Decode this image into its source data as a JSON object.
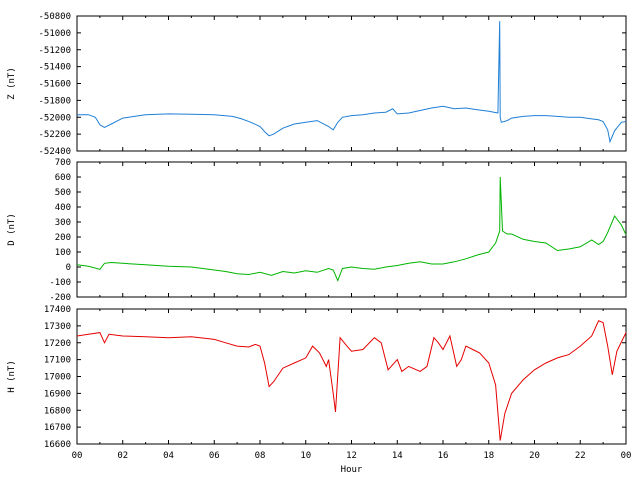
{
  "chart_data": [
    {
      "type": "line",
      "ylabel": "Z (nT)",
      "color": "#1f7fd6",
      "ylim": [
        -52400,
        -50800
      ],
      "yticks": [
        -50800,
        -51000,
        -51200,
        -51400,
        -51600,
        -51800,
        -52000,
        -52200,
        -52400
      ],
      "xlim": [
        0,
        24
      ],
      "series": [
        {
          "x": [
            0.0,
            0.5,
            0.8,
            1.0,
            1.2,
            1.5,
            2.0,
            2.5,
            3.0,
            4.0,
            5.0,
            6.0,
            6.8,
            7.2,
            7.6,
            8.0,
            8.2,
            8.4,
            8.6,
            9.0,
            9.5,
            10.0,
            10.5,
            11.0,
            11.2,
            11.4,
            11.6,
            12.0,
            12.5,
            13.0,
            13.5,
            13.8,
            14.0,
            14.5,
            15.0,
            15.5,
            16.0,
            16.5,
            17.0,
            17.5,
            18.0,
            18.4,
            18.48,
            18.5,
            18.55,
            18.8,
            19.0,
            19.5,
            20.0,
            20.5,
            21.0,
            21.5,
            22.0,
            22.5,
            22.8,
            23.0,
            23.2,
            23.3,
            23.5,
            23.8,
            24.0
          ],
          "y": [
            -51970,
            -51970,
            -52000,
            -52090,
            -52120,
            -52080,
            -52010,
            -51990,
            -51970,
            -51960,
            -51965,
            -51970,
            -51990,
            -52020,
            -52060,
            -52110,
            -52170,
            -52220,
            -52200,
            -52130,
            -52080,
            -52060,
            -52040,
            -52110,
            -52150,
            -52060,
            -52000,
            -51980,
            -51970,
            -51950,
            -51940,
            -51900,
            -51960,
            -51950,
            -51920,
            -51890,
            -51870,
            -51900,
            -51890,
            -51910,
            -51930,
            -51950,
            -50860,
            -52000,
            -52060,
            -52040,
            -52010,
            -51990,
            -51980,
            -51980,
            -51990,
            -52000,
            -52000,
            -52020,
            -52030,
            -52050,
            -52150,
            -52290,
            -52160,
            -52060,
            -52050
          ]
        }
      ]
    },
    {
      "type": "line",
      "ylabel": "D (nT)",
      "color": "#00b400",
      "ylim": [
        -200,
        700
      ],
      "yticks": [
        700,
        600,
        500,
        400,
        300,
        200,
        100,
        0,
        -100,
        -200
      ],
      "xlim": [
        0,
        24
      ],
      "series": [
        {
          "x": [
            0.0,
            0.5,
            1.0,
            1.2,
            1.5,
            2.0,
            3.0,
            4.0,
            5.0,
            6.0,
            6.5,
            7.0,
            7.5,
            8.0,
            8.5,
            9.0,
            9.5,
            10.0,
            10.5,
            11.0,
            11.2,
            11.4,
            11.6,
            12.0,
            12.5,
            13.0,
            13.5,
            14.0,
            14.5,
            15.0,
            15.5,
            16.0,
            16.5,
            17.0,
            17.5,
            18.0,
            18.3,
            18.48,
            18.5,
            18.6,
            18.8,
            19.0,
            19.5,
            20.0,
            20.5,
            21.0,
            21.5,
            22.0,
            22.5,
            22.8,
            23.0,
            23.2,
            23.5,
            23.8,
            24.0
          ],
          "y": [
            15,
            5,
            -15,
            25,
            30,
            25,
            15,
            5,
            0,
            -20,
            -30,
            -45,
            -50,
            -35,
            -55,
            -30,
            -40,
            -25,
            -35,
            -10,
            -20,
            -90,
            -10,
            0,
            -10,
            -15,
            0,
            10,
            25,
            35,
            20,
            20,
            35,
            55,
            80,
            100,
            160,
            240,
            600,
            240,
            220,
            220,
            185,
            170,
            160,
            110,
            120,
            135,
            180,
            150,
            170,
            230,
            340,
            280,
            215
          ]
        }
      ]
    },
    {
      "type": "line",
      "ylabel": "H (nT)",
      "color": "#e60000",
      "ylim": [
        16600,
        17400
      ],
      "yticks": [
        17400,
        17300,
        17200,
        17100,
        17000,
        16900,
        16800,
        16700,
        16600
      ],
      "xlim": [
        0,
        24
      ],
      "xticks": [
        "00",
        "02",
        "04",
        "06",
        "08",
        "10",
        "12",
        "14",
        "16",
        "18",
        "20",
        "22",
        "00"
      ],
      "xlabel": "Hour",
      "series": [
        {
          "x": [
            0.0,
            0.5,
            1.0,
            1.2,
            1.4,
            2.0,
            3.0,
            4.0,
            5.0,
            6.0,
            6.5,
            7.0,
            7.5,
            7.8,
            8.0,
            8.2,
            8.4,
            8.6,
            9.0,
            9.5,
            10.0,
            10.3,
            10.6,
            10.9,
            11.0,
            11.2,
            11.3,
            11.5,
            11.8,
            12.0,
            12.5,
            13.0,
            13.3,
            13.6,
            14.0,
            14.2,
            14.5,
            15.0,
            15.3,
            15.6,
            15.8,
            16.0,
            16.3,
            16.6,
            16.8,
            17.0,
            17.3,
            17.6,
            18.0,
            18.3,
            18.5,
            18.7,
            19.0,
            19.5,
            20.0,
            20.5,
            21.0,
            21.5,
            22.0,
            22.5,
            22.8,
            23.0,
            23.2,
            23.4,
            23.6,
            24.0
          ],
          "y": [
            17240,
            17250,
            17260,
            17200,
            17250,
            17240,
            17235,
            17230,
            17235,
            17220,
            17200,
            17180,
            17175,
            17190,
            17180,
            17080,
            16940,
            16970,
            17050,
            17080,
            17110,
            17180,
            17140,
            17060,
            17100,
            16900,
            16790,
            17230,
            17180,
            17150,
            17160,
            17230,
            17200,
            17040,
            17100,
            17030,
            17060,
            17030,
            17060,
            17230,
            17200,
            17160,
            17240,
            17060,
            17100,
            17180,
            17160,
            17140,
            17080,
            16950,
            16620,
            16780,
            16900,
            16980,
            17040,
            17080,
            17110,
            17130,
            17180,
            17240,
            17330,
            17320,
            17180,
            17010,
            17150,
            17260
          ]
        }
      ]
    }
  ]
}
